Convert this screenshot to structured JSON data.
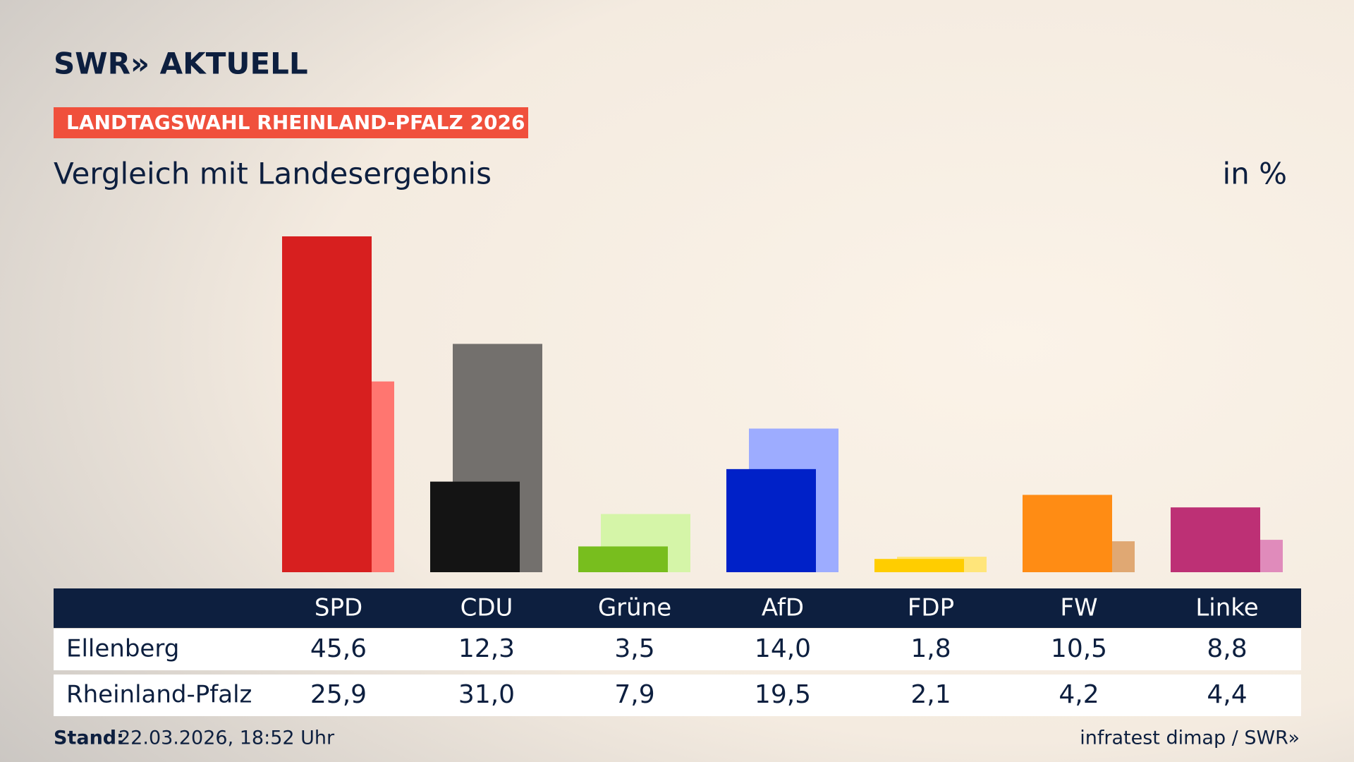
{
  "header": {
    "logo": "SWR» AKTUELL",
    "badge": "LANDTAGSWAHL RHEINLAND-PFALZ 2026",
    "unit": "in %"
  },
  "chart_data": {
    "type": "bar",
    "title": "Vergleich mit Landesergebnis",
    "categories": [
      "SPD",
      "CDU",
      "Grüne",
      "AfD",
      "FDP",
      "FW",
      "Linke"
    ],
    "series": [
      {
        "name": "Ellenberg",
        "colors": [
          "#d71f1f",
          "#141414",
          "#78be1e",
          "#0021c8",
          "#ffcd00",
          "#ff8c14",
          "#bd3075"
        ],
        "values": [
          45.6,
          12.3,
          3.5,
          14.0,
          1.8,
          10.5,
          8.8
        ],
        "value_labels": [
          "45,6",
          "12,3",
          "3,5",
          "14,0",
          "1,8",
          "10,5",
          "8,8"
        ]
      },
      {
        "name": "Rheinland-Pfalz",
        "colors": [
          "#ff7670",
          "#73706d",
          "#d5f5a8",
          "#9dacff",
          "#ffe57a",
          "#e0a873",
          "#e08bbb"
        ],
        "values": [
          25.9,
          31.0,
          7.9,
          19.5,
          2.1,
          4.2,
          4.4
        ],
        "value_labels": [
          "25,9",
          "31,0",
          "7,9",
          "19,5",
          "2,1",
          "4,2",
          "4,4"
        ]
      }
    ]
  },
  "footer": {
    "stand_label": "Stand:",
    "stand_value": "22.03.2026, 18:52 Uhr",
    "source": "infratest dimap / SWR»"
  }
}
